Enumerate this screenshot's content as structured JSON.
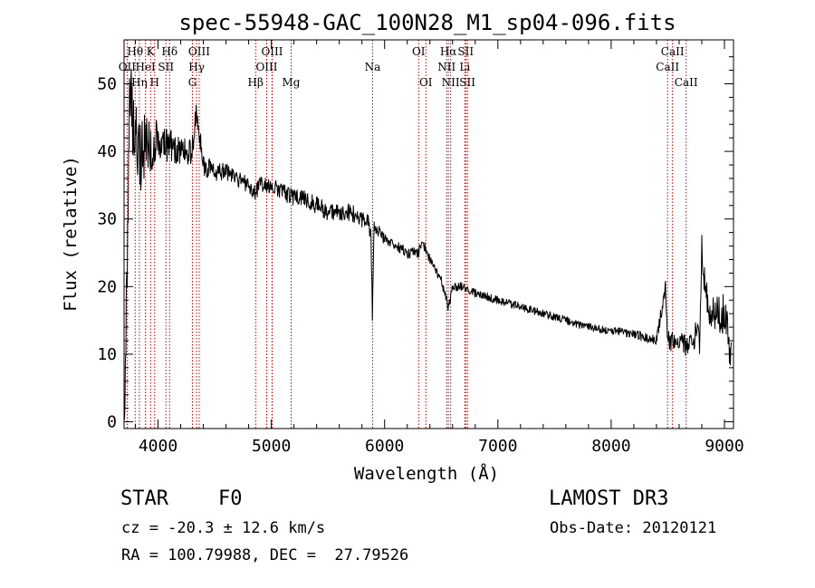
{
  "chart_data": {
    "type": "line",
    "title": "spec-55948-GAC_100N28_M1_sp04-096.fits",
    "xlabel": "Wavelength (Å)",
    "ylabel": "Flux (relative)",
    "xlim": [
      3700,
      9080
    ],
    "ylim": [
      -1,
      56.5
    ],
    "x_ticks": [
      4000,
      5000,
      6000,
      7000,
      8000,
      9000
    ],
    "x_tick_labels": [
      "4000",
      "5000",
      "6000",
      "7000",
      "8000",
      "9000"
    ],
    "y_ticks": [
      0,
      10,
      20,
      30,
      40,
      50
    ],
    "y_tick_labels": [
      "0",
      "10",
      "20",
      "30",
      "40",
      "50"
    ],
    "grid": false,
    "spectrum_anchors": {
      "x": [
        3700,
        3725,
        3750,
        3775,
        3800,
        3850,
        3900,
        3950,
        4000,
        4050,
        4100,
        4200,
        4300,
        4340,
        4400,
        4500,
        4600,
        4700,
        4800,
        4860,
        4900,
        5000,
        5100,
        5200,
        5300,
        5400,
        5500,
        5600,
        5700,
        5800,
        5850,
        5880,
        5893,
        5905,
        5950,
        6000,
        6100,
        6200,
        6300,
        6330,
        6400,
        6500,
        6563,
        6600,
        6700,
        6800,
        7000,
        7200,
        7400,
        7600,
        7800,
        8000,
        8200,
        8300,
        8400,
        8450,
        8480,
        8498,
        8520,
        8542,
        8570,
        8620,
        8662,
        8700,
        8750,
        8780,
        8800,
        8830,
        8860,
        8900,
        8950,
        9000,
        9030,
        9060
      ],
      "y": [
        0,
        22,
        47,
        44,
        41,
        39,
        42,
        40,
        42,
        41,
        41,
        40,
        40,
        46,
        38,
        37,
        37,
        36,
        35,
        34,
        35,
        35,
        34,
        33,
        33,
        32,
        31,
        31,
        31,
        30,
        30,
        27,
        15,
        29,
        28,
        27,
        26,
        25,
        25,
        27,
        24,
        21,
        17,
        20,
        20,
        19,
        18,
        17,
        16,
        15,
        14,
        13.5,
        13,
        12.5,
        12,
        17,
        20,
        12,
        12,
        12,
        11,
        12,
        11,
        12,
        13,
        12,
        26,
        20,
        17,
        16,
        16,
        16,
        13,
        9
      ],
      "noise_amplitude": [
        6,
        6,
        7,
        7,
        6,
        5,
        5,
        4,
        3,
        2.5,
        2.5,
        2,
        2,
        2,
        1.6,
        1.4,
        1.3,
        1.2,
        1.2,
        1.2,
        1.2,
        1.2,
        1.2,
        1.3,
        1.3,
        1.3,
        1.3,
        1.3,
        1.3,
        1.2,
        1.2,
        1.2,
        1.2,
        1.2,
        1,
        0.9,
        0.8,
        0.8,
        0.8,
        0.8,
        0.7,
        0.7,
        0.7,
        0.7,
        0.7,
        0.6,
        0.6,
        0.6,
        0.6,
        0.6,
        0.6,
        0.6,
        0.6,
        0.7,
        0.8,
        1,
        1.2,
        1.5,
        1.5,
        1.5,
        1.5,
        1.5,
        1.5,
        1.8,
        2,
        2,
        2.5,
        2.5,
        2.5,
        2.5,
        3,
        3,
        3,
        3
      ]
    },
    "line_markers": [
      {
        "label": "Hθ",
        "wavelength": 3798,
        "row": 1
      },
      {
        "label": "OII",
        "wavelength": 3727,
        "row": 2
      },
      {
        "label": "Hη",
        "wavelength": 3835,
        "row": 3
      },
      {
        "label": "K",
        "wavelength": 3934,
        "row": 1
      },
      {
        "label": "HeI",
        "wavelength": 3889,
        "row": 2
      },
      {
        "label": "H",
        "wavelength": 3970,
        "row": 3
      },
      {
        "label": "Hδ",
        "wavelength": 4102,
        "row": 1
      },
      {
        "label": "SII",
        "wavelength": 4070,
        "row": 2
      },
      {
        "label": "OIII",
        "wavelength": 4363,
        "row": 1
      },
      {
        "label": "Hγ",
        "wavelength": 4340,
        "row": 2
      },
      {
        "label": "G",
        "wavelength": 4304,
        "row": 3
      },
      {
        "label": "Hβ",
        "wavelength": 4861,
        "row": 3
      },
      {
        "label": "OIII",
        "wavelength": 5007,
        "row": 1
      },
      {
        "label": "OIII",
        "wavelength": 4959,
        "row": 2
      },
      {
        "label": "Mg",
        "wavelength": 5175,
        "row": 3
      },
      {
        "label": "Na",
        "wavelength": 5894,
        "row": 2
      },
      {
        "label": "OI",
        "wavelength": 6300,
        "row": 1
      },
      {
        "label": "OI",
        "wavelength": 6364,
        "row": 3
      },
      {
        "label": "Hα",
        "wavelength": 6563,
        "row": 1
      },
      {
        "label": "SII",
        "wavelength": 6716,
        "row": 1
      },
      {
        "label": "NII",
        "wavelength": 6548,
        "row": 2
      },
      {
        "label": "Li",
        "wavelength": 6708,
        "row": 2
      },
      {
        "label": "NII",
        "wavelength": 6583,
        "row": 3
      },
      {
        "label": "SII",
        "wavelength": 6731,
        "row": 3
      },
      {
        "label": "CaII",
        "wavelength": 8542,
        "row": 1
      },
      {
        "label": "CaII",
        "wavelength": 8498,
        "row": 2
      },
      {
        "label": "CaII",
        "wavelength": 8662,
        "row": 3
      }
    ]
  },
  "info": {
    "object_class": "STAR",
    "subclass": "F0",
    "survey": "LAMOST DR3",
    "cz": "cz = -20.3 ± 12.6 km/s",
    "obs_date": "Obs-Date: 20120121",
    "coords": "RA = 100.79988, DEC =  27.79526"
  },
  "colors": {
    "spectrum": "#000000",
    "marker_line": "#cc0000",
    "text": "#000000",
    "background": "#ffffff"
  }
}
